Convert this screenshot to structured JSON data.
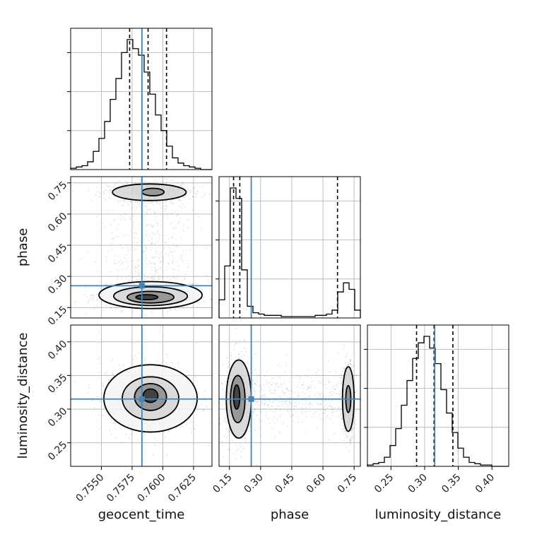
{
  "chart_data": {
    "type": "corner",
    "parameters": [
      "geocent_time",
      "phase",
      "luminosity_distance"
    ],
    "truth": {
      "geocent_time": 0.7583,
      "phase": 0.255,
      "luminosity_distance": 0.315
    },
    "ranges": {
      "geocent_time": [
        0.7525,
        0.764
      ],
      "phase": [
        0.1,
        0.78
      ],
      "luminosity_distance": [
        0.215,
        0.425
      ]
    },
    "ticks": {
      "geocent_time": [
        0.755,
        0.7575,
        0.76,
        0.7625
      ],
      "phase": [
        0.15,
        0.3,
        0.45,
        0.6,
        0.75
      ],
      "luminosity_distance": [
        0.25,
        0.3,
        0.35,
        0.4
      ]
    },
    "tick_labels": {
      "geocent_time": [
        "0.7550",
        "0.7575",
        "0.7600",
        "0.7625"
      ],
      "phase": [
        "0.15",
        "0.30",
        "0.45",
        "0.60",
        "0.75"
      ],
      "luminosity_distance": [
        "0.25",
        "0.30",
        "0.35",
        "0.40"
      ]
    },
    "quantiles": {
      "geocent_time": [
        0.7573,
        0.7588,
        0.7603
      ],
      "phase": [
        0.17,
        0.2,
        0.67
      ],
      "luminosity_distance": [
        0.288,
        0.314,
        0.342
      ]
    },
    "histograms": {
      "geocent_time": {
        "edges": [
          0.7525,
          0.75296,
          0.75342,
          0.75388,
          0.75434,
          0.7548,
          0.75526,
          0.75572,
          0.75618,
          0.75664,
          0.7571,
          0.75756,
          0.75802,
          0.75848,
          0.75894,
          0.7594,
          0.75986,
          0.76032,
          0.76078,
          0.76124,
          0.7617,
          0.76216,
          0.76262,
          0.76308,
          0.76354,
          0.764
        ],
        "counts": [
          1,
          2,
          3,
          6,
          14,
          24,
          37,
          54,
          70,
          90,
          100,
          93,
          88,
          75,
          58,
          42,
          30,
          18,
          9,
          5,
          3,
          2,
          1,
          0,
          0
        ]
      },
      "phase": {
        "edges": [
          0.1,
          0.1272,
          0.1544,
          0.1816,
          0.2088,
          0.236,
          0.2632,
          0.2904,
          0.3176,
          0.3448,
          0.372,
          0.3992,
          0.4264,
          0.4536,
          0.4808,
          0.508,
          0.5352,
          0.5624,
          0.5896,
          0.6168,
          0.644,
          0.6712,
          0.6984,
          0.7256,
          0.7528,
          0.78
        ],
        "counts": [
          14,
          40,
          100,
          92,
          37,
          9,
          4,
          3,
          2,
          2,
          2,
          1,
          1,
          1,
          1,
          1,
          1,
          2,
          2,
          3,
          6,
          20,
          27,
          22,
          6
        ]
      },
      "luminosity_distance": {
        "edges": [
          0.215,
          0.2234,
          0.2318,
          0.2402,
          0.2486,
          0.257,
          0.2654,
          0.2738,
          0.2822,
          0.2906,
          0.299,
          0.3074,
          0.3158,
          0.3242,
          0.3326,
          0.341,
          0.3494,
          0.3578,
          0.3662,
          0.3746,
          0.383,
          0.3914,
          0.3998,
          0.4082,
          0.4166,
          0.425
        ],
        "counts": [
          1,
          2,
          3,
          7,
          16,
          29,
          47,
          66,
          83,
          95,
          100,
          91,
          79,
          59,
          41,
          26,
          14,
          7,
          3,
          2,
          1,
          1,
          0,
          0,
          0
        ]
      }
    },
    "contours": {
      "phase_vs_geocent_time": [
        {
          "level": 1,
          "cx": 0.7587,
          "cy": 0.2,
          "rx": 0.0009,
          "ry": 0.012
        },
        {
          "level": 2,
          "cx": 0.759,
          "cy": 0.2,
          "rx": 0.0019,
          "ry": 0.028
        },
        {
          "level": 3,
          "cx": 0.759,
          "cy": 0.205,
          "rx": 0.003,
          "ry": 0.045
        },
        {
          "level": 4,
          "cx": 0.759,
          "cy": 0.21,
          "rx": 0.0042,
          "ry": 0.065
        },
        {
          "level": 2,
          "cx": 0.7592,
          "cy": 0.706,
          "rx": 0.0009,
          "ry": 0.018
        },
        {
          "level": 3,
          "cx": 0.7589,
          "cy": 0.705,
          "rx": 0.003,
          "ry": 0.04
        }
      ],
      "luminosity_distance_vs_geocent_time": [
        {
          "level": 1,
          "cx": 0.759,
          "cy": 0.32,
          "rx": 0.0006,
          "ry": 0.01
        },
        {
          "level": 2,
          "cx": 0.759,
          "cy": 0.318,
          "rx": 0.0013,
          "ry": 0.02
        },
        {
          "level": 3,
          "cx": 0.759,
          "cy": 0.316,
          "rx": 0.0023,
          "ry": 0.032
        },
        {
          "level": 4,
          "cx": 0.759,
          "cy": 0.316,
          "rx": 0.0038,
          "ry": 0.05
        }
      ],
      "luminosity_distance_vs_phase": [
        {
          "level": 1,
          "cx": 0.185,
          "cy": 0.318,
          "rx": 0.015,
          "ry": 0.018
        },
        {
          "level": 2,
          "cx": 0.19,
          "cy": 0.315,
          "rx": 0.035,
          "ry": 0.035
        },
        {
          "level": 3,
          "cx": 0.195,
          "cy": 0.315,
          "rx": 0.06,
          "ry": 0.058
        },
        {
          "level": 2,
          "cx": 0.722,
          "cy": 0.315,
          "rx": 0.012,
          "ry": 0.02
        },
        {
          "level": 3,
          "cx": 0.722,
          "cy": 0.315,
          "rx": 0.028,
          "ry": 0.048
        }
      ]
    },
    "grid": true
  }
}
